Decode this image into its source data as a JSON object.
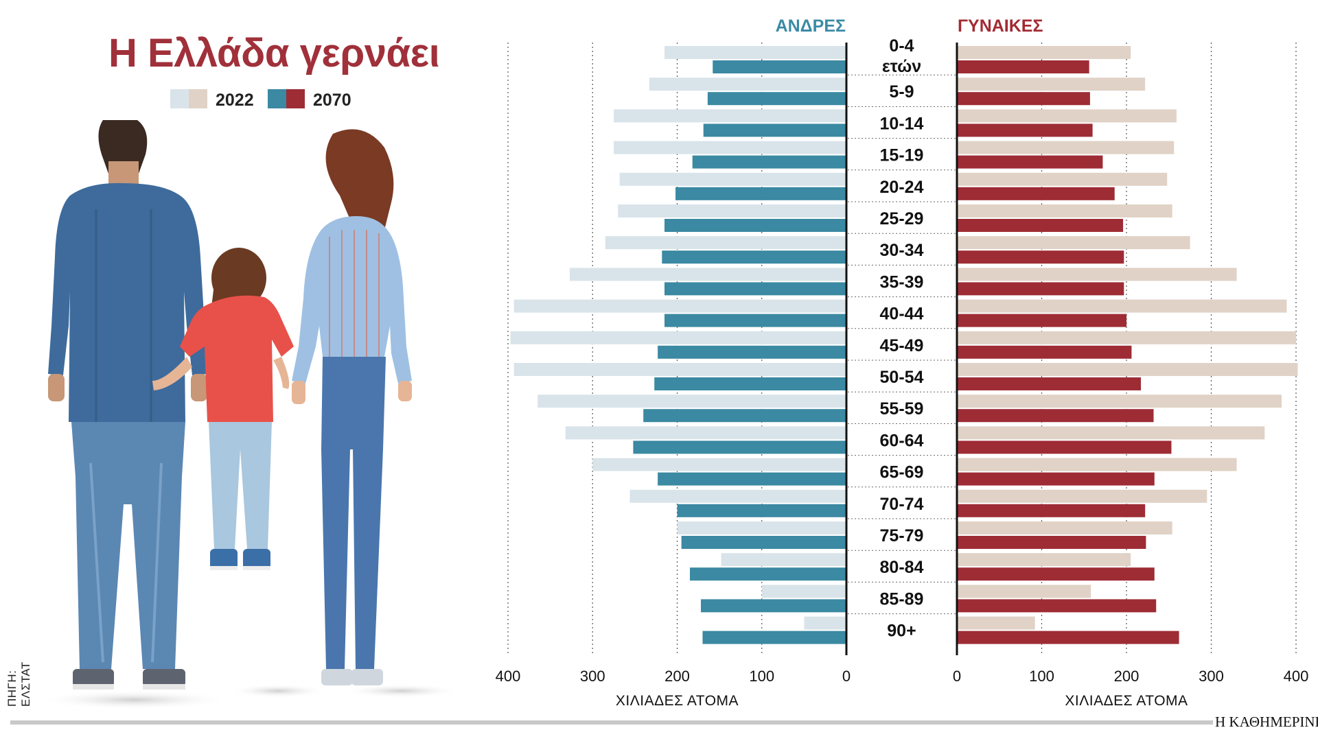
{
  "header": {
    "title": "Η Ελλάδα γερνάει"
  },
  "legend": {
    "label_2022": "2022",
    "label_2070": "2070"
  },
  "source_text": "ΠΗΓΗ: ΕΛΣΤΑΤ",
  "brand": "Η ΚΑΘΗΜΕΡΙΝΗ",
  "colors": {
    "title": "#a0303a",
    "men_2022": "#d9e4ea",
    "men_2070": "#3b89a2",
    "women_2022": "#e0d2c6",
    "women_2070": "#9e2c35",
    "men_header": "#3b8aa5",
    "women_header": "#a22a33"
  },
  "chart_data": {
    "type": "bar",
    "subtype": "population-pyramid",
    "left_header": "ΑΝΔΡΕΣ",
    "right_header": "ΓΥΝΑΙΚΕΣ",
    "categories": [
      "0-4",
      "5-9",
      "10-14",
      "15-19",
      "20-24",
      "25-29",
      "30-34",
      "35-39",
      "40-44",
      "45-49",
      "50-54",
      "55-59",
      "60-64",
      "65-69",
      "70-74",
      "75-79",
      "80-84",
      "85-89",
      "90+"
    ],
    "first_category_sublabel": "ετών",
    "series": [
      {
        "name": "ΑΝΔΡΕΣ 2022",
        "values": [
          215,
          233,
          275,
          275,
          268,
          270,
          285,
          327,
          393,
          397,
          393,
          365,
          332,
          300,
          256,
          200,
          148,
          100,
          50
        ]
      },
      {
        "name": "ΑΝΔΡΕΣ 2070",
        "values": [
          158,
          164,
          169,
          182,
          202,
          215,
          218,
          215,
          215,
          223,
          227,
          240,
          252,
          223,
          200,
          195,
          185,
          172,
          170
        ]
      },
      {
        "name": "ΓΥΝΑΙΚΕΣ 2022",
        "values": [
          205,
          222,
          259,
          256,
          248,
          254,
          275,
          330,
          389,
          400,
          402,
          383,
          363,
          330,
          295,
          254,
          205,
          158,
          92
        ]
      },
      {
        "name": "ΓΥΝΑΙΚΕΣ 2070",
        "values": [
          156,
          157,
          160,
          172,
          186,
          196,
          197,
          197,
          200,
          206,
          217,
          232,
          253,
          233,
          222,
          223,
          233,
          235,
          262
        ]
      }
    ],
    "xlim": [
      0,
      400
    ],
    "ticks": [
      0,
      100,
      200,
      300,
      400
    ],
    "xlabel_left": "ΧΙΛΙΑΔΕΣ ΑΤΟΜΑ",
    "xlabel_right": "ΧΙΛΙΑΔΕΣ ΑΤΟΜΑ",
    "grid": true
  }
}
